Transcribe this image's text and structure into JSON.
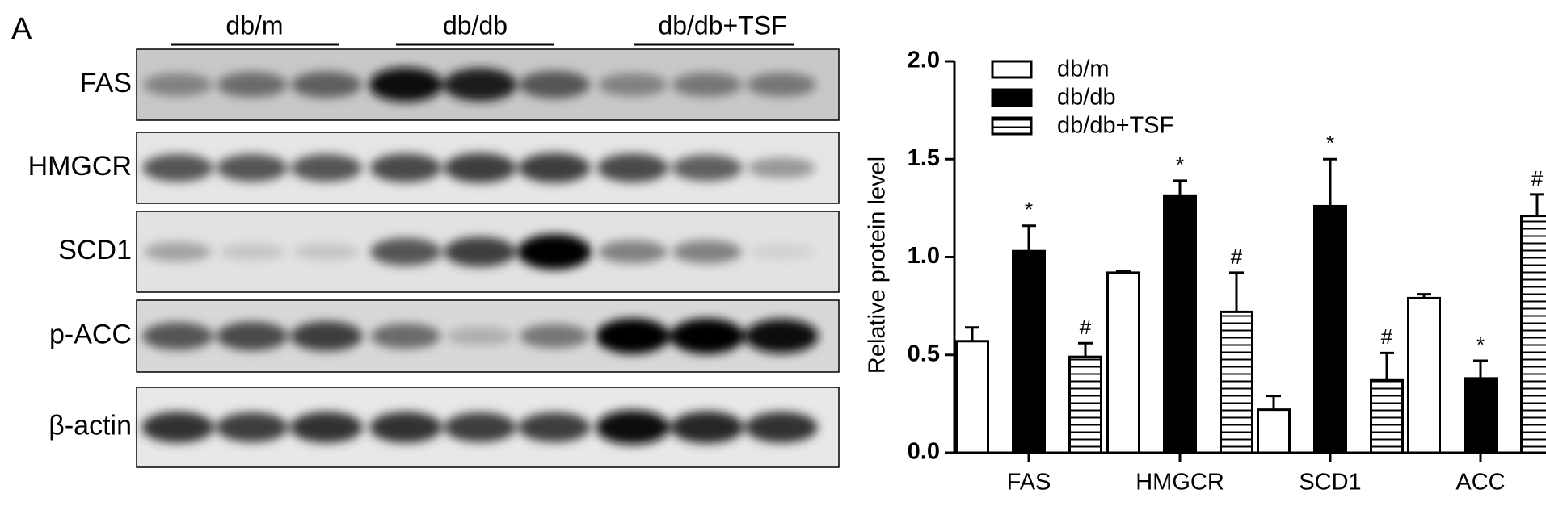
{
  "panel_label": "A",
  "blot": {
    "groups": [
      "db/m",
      "db/db",
      "db/db+TSF"
    ],
    "rows": [
      "FAS",
      "HMGCR",
      "SCD1",
      "p-ACC",
      "β-actin"
    ]
  },
  "chart_data": {
    "type": "bar",
    "y_label": "Relative protein level",
    "categories": [
      "FAS",
      "HMGCR",
      "SCD1",
      "ACC"
    ],
    "series": [
      {
        "name": "db/m",
        "color": "#ffffff",
        "hatch": "none",
        "values": [
          0.57,
          0.92,
          0.22,
          0.79
        ],
        "errors": [
          0.07,
          0.01,
          0.07,
          0.02
        ]
      },
      {
        "name": "db/db",
        "color": "#000000",
        "hatch": "none",
        "values": [
          1.03,
          1.31,
          1.26,
          0.38
        ],
        "errors": [
          0.13,
          0.08,
          0.24,
          0.09
        ],
        "annotations": [
          "*",
          "*",
          "*",
          "*"
        ]
      },
      {
        "name": "db/db+TSF",
        "color": "#ffffff",
        "hatch": "horizontal",
        "values": [
          0.49,
          0.72,
          0.37,
          1.21
        ],
        "errors": [
          0.07,
          0.2,
          0.14,
          0.11
        ],
        "annotations": [
          "#",
          "#",
          "#",
          "#"
        ]
      }
    ],
    "ylim": [
      0,
      2
    ],
    "yticks": [
      {
        "value": 0,
        "label": "0.0"
      },
      0.5,
      {
        "value": 1,
        "label": "1.0"
      },
      1.5,
      {
        "value": 2,
        "label": "2.0"
      }
    ],
    "legend": "top-left"
  }
}
